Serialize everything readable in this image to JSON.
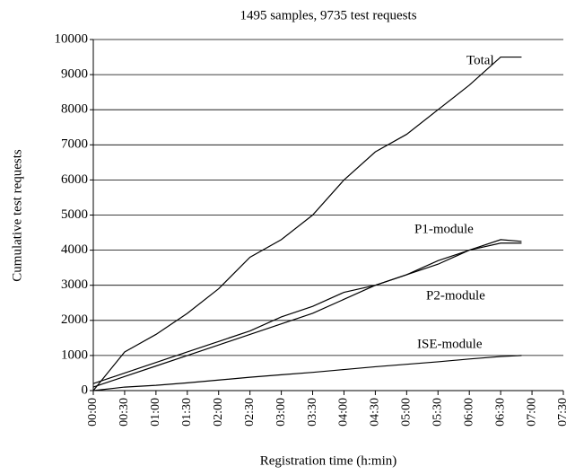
{
  "chart_data": {
    "type": "line",
    "title": "1495 samples, 9735 test requests",
    "xlabel": "Registration time (h:min)",
    "ylabel": "Cumulative test requests",
    "x": [
      0,
      30,
      60,
      90,
      120,
      150,
      180,
      210,
      240,
      270,
      300,
      330,
      360,
      390,
      410
    ],
    "series": [
      {
        "name": "Total",
        "color": "#000000",
        "values": [
          0,
          1100,
          1600,
          2200,
          2900,
          3800,
          4300,
          5000,
          6000,
          6800,
          7300,
          8000,
          8700,
          9500,
          9500
        ]
      },
      {
        "name": "P1-module",
        "color": "#000000",
        "values": [
          200,
          500,
          800,
          1100,
          1400,
          1700,
          2100,
          2400,
          2800,
          3000,
          3300,
          3600,
          4000,
          4200,
          4200
        ]
      },
      {
        "name": "P2-module",
        "color": "#000000",
        "values": [
          100,
          400,
          700,
          1000,
          1300,
          1600,
          1900,
          2200,
          2600,
          3000,
          3300,
          3700,
          4000,
          4300,
          4250
        ]
      },
      {
        "name": "ISE-module",
        "color": "#000000",
        "values": [
          0,
          100,
          150,
          220,
          300,
          380,
          450,
          520,
          600,
          680,
          750,
          820,
          900,
          970,
          1000
        ]
      }
    ],
    "xlim": [
      0,
      450
    ],
    "xticks": [
      {
        "value": 0,
        "label": "00:00"
      },
      {
        "value": 30,
        "label": "00:30"
      },
      {
        "value": 60,
        "label": "01:00"
      },
      {
        "value": 90,
        "label": "01:30"
      },
      {
        "value": 120,
        "label": "02:00"
      },
      {
        "value": 150,
        "label": "02:30"
      },
      {
        "value": 180,
        "label": "03:00"
      },
      {
        "value": 210,
        "label": "03:30"
      },
      {
        "value": 240,
        "label": "04:00"
      },
      {
        "value": 270,
        "label": "04:30"
      },
      {
        "value": 300,
        "label": "05:00"
      },
      {
        "value": 330,
        "label": "05:30"
      },
      {
        "value": 360,
        "label": "06:00"
      },
      {
        "value": 390,
        "label": "06:30"
      },
      {
        "value": 420,
        "label": "07:00"
      },
      {
        "value": 450,
        "label": "07:30"
      }
    ],
    "ylim": [
      0,
      10000
    ],
    "yticks": [
      0,
      1000,
      2000,
      3000,
      4000,
      5000,
      6000,
      7000,
      8000,
      9000,
      10000
    ],
    "grid": true
  }
}
